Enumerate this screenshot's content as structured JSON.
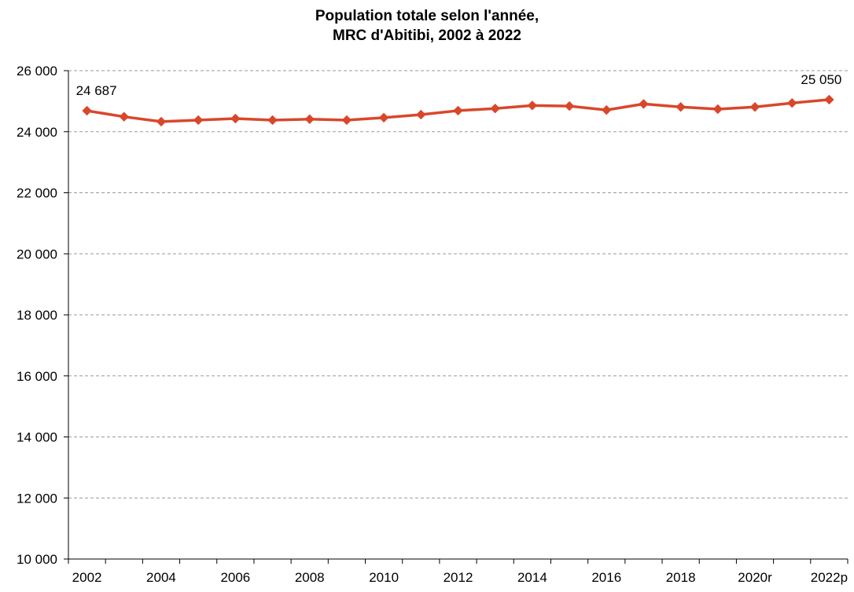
{
  "chart_data": {
    "type": "line",
    "title": [
      "Population totale selon l'année,",
      "MRC d'Abitibi, 2002 à 2022"
    ],
    "xlabel": "",
    "ylabel": "",
    "x": [
      "2002",
      "2003",
      "2004",
      "2005",
      "2006",
      "2007",
      "2008",
      "2009",
      "2010",
      "2011",
      "2012",
      "2013",
      "2014",
      "2015",
      "2016",
      "2017",
      "2018",
      "2019",
      "2020r",
      "2021",
      "2022p"
    ],
    "x_tick_labels": [
      "2002",
      "2004",
      "2006",
      "2008",
      "2010",
      "2012",
      "2014",
      "2016",
      "2018",
      "2020r",
      "2022p"
    ],
    "series": [
      {
        "values": [
          24687,
          24490,
          24330,
          24380,
          24430,
          24380,
          24410,
          24380,
          24460,
          24560,
          24690,
          24760,
          24860,
          24840,
          24710,
          24910,
          24810,
          24740,
          24810,
          24940,
          25050
        ],
        "color": "#D9472B",
        "marker": "diamond"
      }
    ],
    "ylim": [
      10000,
      26000
    ],
    "y_ticks": [
      10000,
      12000,
      14000,
      16000,
      18000,
      20000,
      22000,
      24000,
      26000
    ],
    "y_tick_labels": [
      "10 000",
      "12 000",
      "14 000",
      "16 000",
      "18 000",
      "20 000",
      "22 000",
      "24 000",
      "26 000"
    ],
    "grid": "horizontal dashed",
    "legend": "none",
    "data_labels": [
      {
        "index": 0,
        "text": "24 687"
      },
      {
        "index": 20,
        "text": "25 050"
      }
    ]
  }
}
